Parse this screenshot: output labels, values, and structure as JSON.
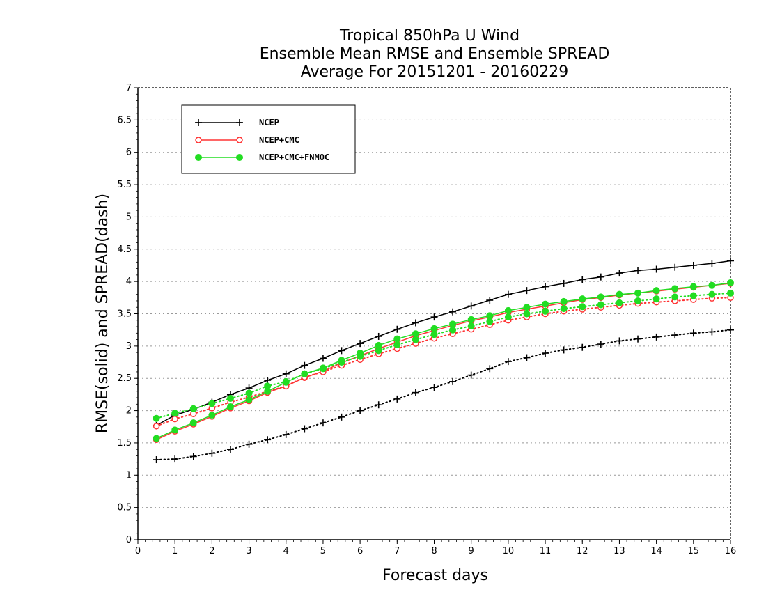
{
  "chart_data": {
    "type": "line",
    "title": [
      "Tropical 850hPa U Wind",
      "Ensemble Mean RMSE and Ensemble SPREAD",
      "Average For 20151201 - 20160229"
    ],
    "xlabel": "Forecast days",
    "ylabel": "RMSE(solid) and SPREAD(dash)",
    "xlim": [
      0,
      16
    ],
    "ylim": [
      0,
      7
    ],
    "xticks": [
      "0",
      "1",
      "2",
      "3",
      "4",
      "5",
      "6",
      "7",
      "8",
      "9",
      "10",
      "11",
      "12",
      "13",
      "14",
      "15",
      "16"
    ],
    "yticks": [
      "0",
      "0.5",
      "1",
      "1.5",
      "2",
      "2.5",
      "3",
      "3.5",
      "4",
      "4.5",
      "5",
      "5.5",
      "6",
      "6.5",
      "7"
    ],
    "grid": "horizontal dotted",
    "legend_position": "top-left",
    "x": [
      0.5,
      1,
      1.5,
      2,
      2.5,
      3,
      3.5,
      4,
      4.5,
      5,
      5.5,
      6,
      6.5,
      7,
      7.5,
      8,
      8.5,
      9,
      9.5,
      10,
      10.5,
      11,
      11.5,
      12,
      12.5,
      13,
      13.5,
      14,
      14.5,
      15,
      15.5,
      16
    ],
    "series": [
      {
        "name": "NCEP",
        "metric": "RMSE",
        "style": "solid",
        "marker": "plus",
        "color": "#000000",
        "values": [
          1.77,
          1.93,
          2.02,
          2.13,
          2.25,
          2.35,
          2.47,
          2.57,
          2.7,
          2.81,
          2.93,
          3.04,
          3.15,
          3.26,
          3.36,
          3.45,
          3.53,
          3.62,
          3.71,
          3.8,
          3.86,
          3.92,
          3.97,
          4.03,
          4.07,
          4.13,
          4.17,
          4.19,
          4.22,
          4.25,
          4.28,
          4.32
        ]
      },
      {
        "name": "NCEP",
        "metric": "SPREAD",
        "style": "dotted",
        "marker": "plus",
        "color": "#000000",
        "values": [
          1.24,
          1.25,
          1.29,
          1.34,
          1.4,
          1.48,
          1.55,
          1.63,
          1.72,
          1.81,
          1.9,
          2.0,
          2.09,
          2.18,
          2.28,
          2.36,
          2.45,
          2.55,
          2.65,
          2.76,
          2.82,
          2.89,
          2.94,
          2.98,
          3.03,
          3.08,
          3.11,
          3.14,
          3.17,
          3.2,
          3.22,
          3.25
        ]
      },
      {
        "name": "NCEP+CMC",
        "metric": "RMSE",
        "style": "solid",
        "marker": "open-circle",
        "color": "#ff3333",
        "values": [
          1.55,
          1.68,
          1.79,
          1.91,
          2.04,
          2.15,
          2.28,
          2.38,
          2.51,
          2.61,
          2.74,
          2.85,
          2.96,
          3.06,
          3.16,
          3.24,
          3.32,
          3.39,
          3.45,
          3.52,
          3.57,
          3.62,
          3.67,
          3.72,
          3.75,
          3.79,
          3.82,
          3.85,
          3.88,
          3.91,
          3.94,
          3.97
        ]
      },
      {
        "name": "NCEP+CMC",
        "metric": "SPREAD",
        "style": "dotted",
        "marker": "open-circle",
        "color": "#ff3333",
        "values": [
          1.76,
          1.87,
          1.95,
          2.04,
          2.13,
          2.21,
          2.3,
          2.38,
          2.52,
          2.6,
          2.7,
          2.79,
          2.88,
          2.96,
          3.04,
          3.12,
          3.19,
          3.26,
          3.33,
          3.4,
          3.45,
          3.5,
          3.54,
          3.57,
          3.6,
          3.63,
          3.66,
          3.68,
          3.7,
          3.72,
          3.74,
          3.75
        ]
      },
      {
        "name": "NCEP+CMC+FNMOC",
        "metric": "RMSE",
        "style": "solid",
        "marker": "filled-circle",
        "color": "#22dd22",
        "values": [
          1.57,
          1.7,
          1.81,
          1.93,
          2.06,
          2.17,
          2.3,
          2.44,
          2.57,
          2.66,
          2.78,
          2.89,
          3.01,
          3.11,
          3.19,
          3.27,
          3.34,
          3.41,
          3.47,
          3.55,
          3.6,
          3.65,
          3.69,
          3.73,
          3.76,
          3.8,
          3.82,
          3.86,
          3.89,
          3.92,
          3.94,
          3.98
        ]
      },
      {
        "name": "NCEP+CMC+FNMOC",
        "metric": "SPREAD",
        "style": "dotted",
        "marker": "filled-circle",
        "color": "#22dd22",
        "values": [
          1.88,
          1.96,
          2.03,
          2.11,
          2.19,
          2.27,
          2.38,
          2.45,
          2.57,
          2.65,
          2.75,
          2.84,
          2.93,
          3.02,
          3.1,
          3.18,
          3.25,
          3.31,
          3.38,
          3.45,
          3.5,
          3.54,
          3.58,
          3.61,
          3.64,
          3.67,
          3.7,
          3.73,
          3.76,
          3.78,
          3.8,
          3.82
        ]
      }
    ],
    "legend": [
      {
        "label": "NCEP",
        "marker": "plus",
        "color": "#000000"
      },
      {
        "label": "NCEP+CMC",
        "marker": "open-circle",
        "color": "#ff3333"
      },
      {
        "label": "NCEP+CMC+FNMOC",
        "marker": "filled-circle",
        "color": "#22dd22"
      }
    ]
  }
}
